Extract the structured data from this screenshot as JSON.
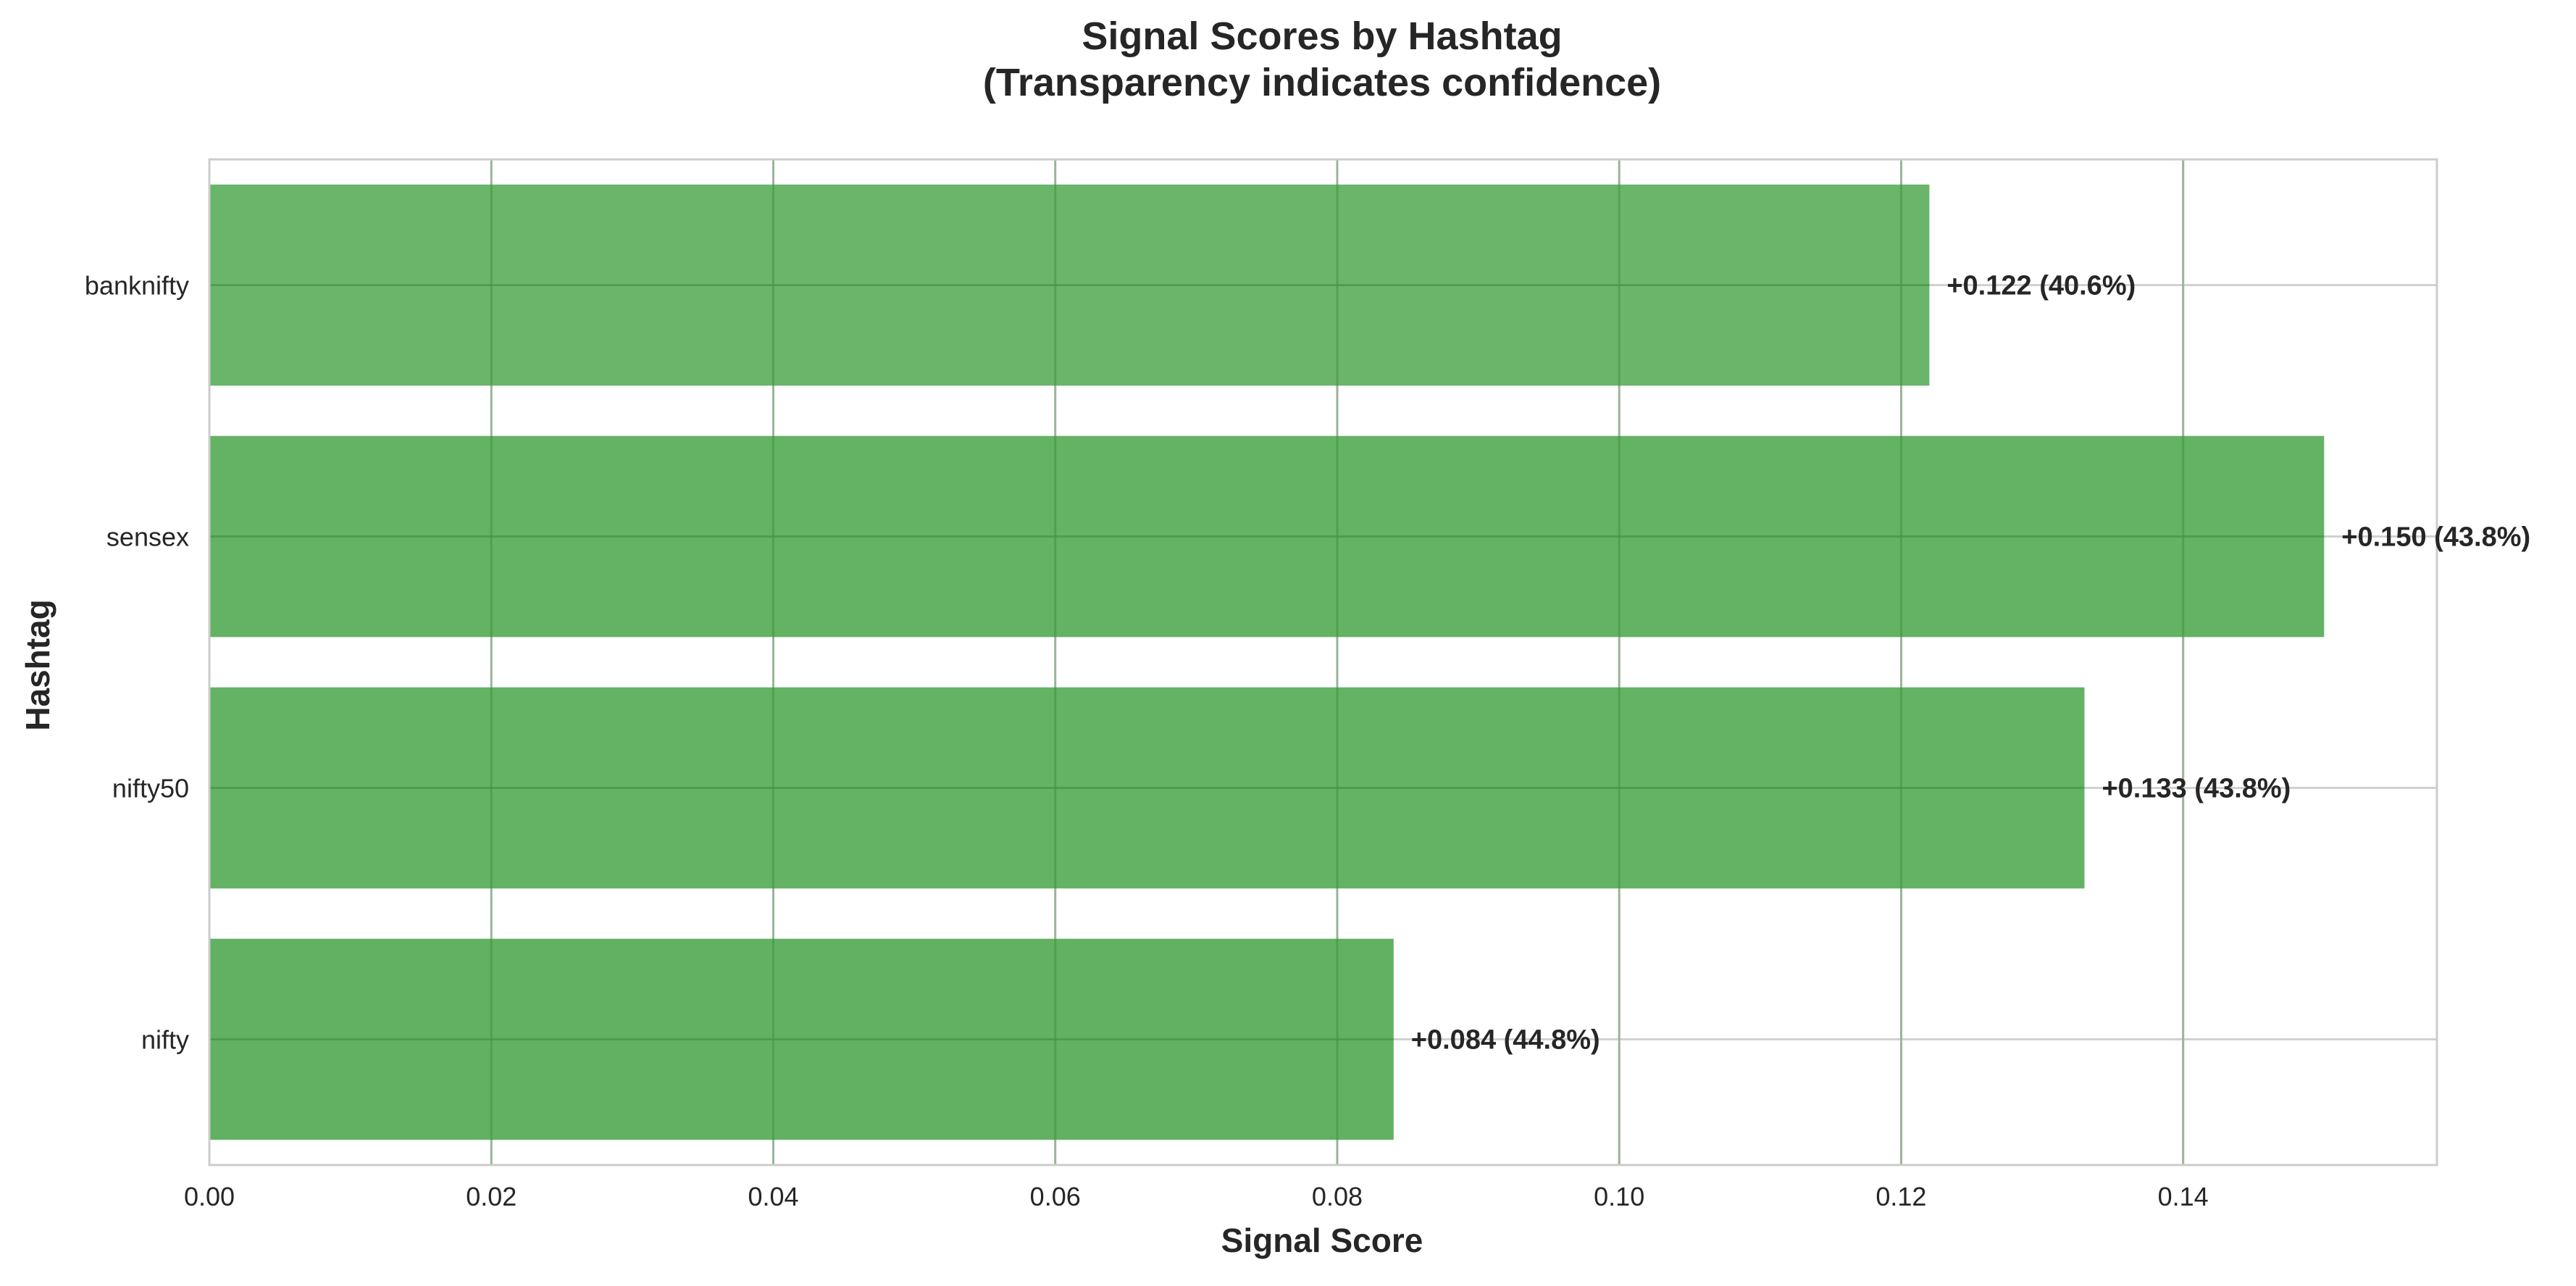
{
  "chart_data": {
    "type": "bar",
    "orientation": "horizontal",
    "title": "Signal Scores by Hashtag",
    "subtitle": "(Transparency indicates confidence)",
    "xlabel": "Signal Score",
    "ylabel": "Hashtag",
    "categories": [
      "banknifty",
      "sensex",
      "nifty50",
      "nifty"
    ],
    "values": [
      0.122,
      0.15,
      0.133,
      0.084
    ],
    "confidence_pct": [
      40.6,
      43.8,
      43.8,
      44.8
    ],
    "data_labels": [
      "+0.122 (40.6%)",
      "+0.150 (43.8%)",
      "+0.133 (43.8%)",
      "+0.084 (44.8%)"
    ],
    "xlim": [
      0,
      0.158
    ],
    "xticks": [
      0.0,
      0.02,
      0.04,
      0.06,
      0.08,
      0.1,
      0.12,
      0.14
    ],
    "xtick_labels": [
      "0.00",
      "0.02",
      "0.04",
      "0.06",
      "0.08",
      "0.10",
      "0.12",
      "0.14"
    ],
    "grid": true,
    "colors": {
      "bar": "#4ca64c",
      "grid": "#cccccc",
      "frame": "#cccccc",
      "text": "#262626"
    }
  }
}
